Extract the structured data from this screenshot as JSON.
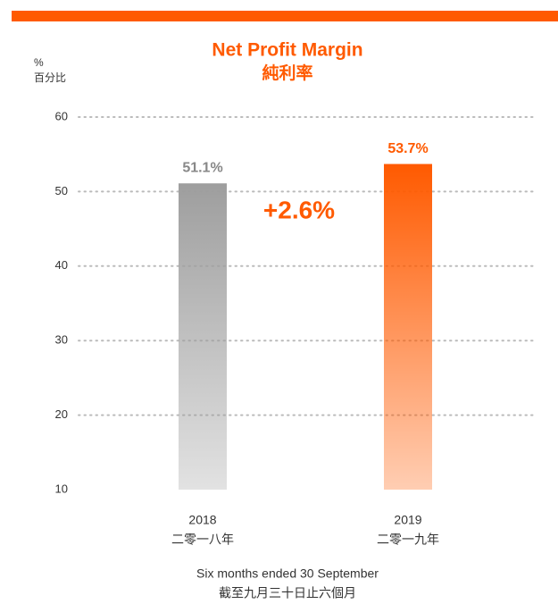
{
  "chart_data": {
    "type": "bar",
    "title": "Net Profit Margin",
    "subtitle": "純利率",
    "y_label": "%",
    "y_label_zh": "百分比",
    "categories": [
      "2018",
      "2019"
    ],
    "categories_zh": [
      "二零一八年",
      "二零一九年"
    ],
    "values": [
      51.1,
      53.7
    ],
    "value_labels": [
      "51.1%",
      "53.7%"
    ],
    "colors": [
      "#9e9e9e",
      "#ff5a00"
    ],
    "annotation": "+2.6%",
    "x_label": "Six months ended 30 September",
    "x_label_zh": "截至九月三十日止六個月",
    "ylim": [
      10,
      60
    ],
    "yticks": [
      10,
      20,
      30,
      40,
      50,
      60
    ],
    "grid": true
  }
}
